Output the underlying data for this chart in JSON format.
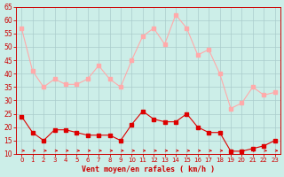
{
  "hours": [
    0,
    1,
    2,
    3,
    4,
    5,
    6,
    7,
    8,
    9,
    10,
    11,
    12,
    13,
    14,
    15,
    16,
    17,
    18,
    19,
    20,
    21,
    22,
    23
  ],
  "wind_avg": [
    24,
    18,
    15,
    19,
    19,
    18,
    17,
    17,
    17,
    15,
    21,
    26,
    23,
    22,
    22,
    25,
    20,
    18,
    18,
    11,
    11,
    12,
    13,
    15
  ],
  "wind_gust": [
    57,
    41,
    35,
    38,
    36,
    36,
    38,
    43,
    38,
    35,
    45,
    54,
    57,
    51,
    62,
    57,
    47,
    49,
    40,
    27,
    29,
    35,
    32,
    33
  ],
  "avg_color": "#dd0000",
  "gust_color": "#ffaaaa",
  "bg_color": "#cceee8",
  "grid_color": "#aacccc",
  "xlabel": "Vent moyen/en rafales ( km/h )",
  "xlabel_color": "#cc0000",
  "tick_color": "#cc0000",
  "spine_color": "#cc0000",
  "ylim_min": 10,
  "ylim_max": 65,
  "yticks": [
    10,
    15,
    20,
    25,
    30,
    35,
    40,
    45,
    50,
    55,
    60,
    65
  ],
  "marker_size": 2.5,
  "linewidth": 0.8
}
